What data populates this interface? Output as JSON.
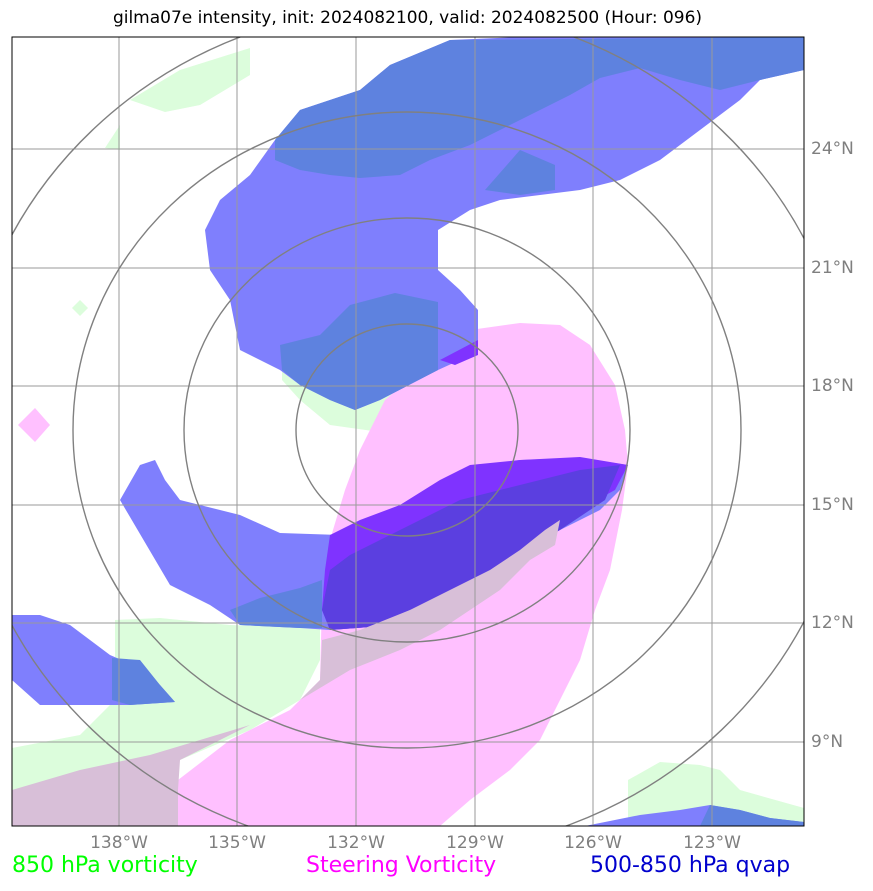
{
  "title": "gilma07e intensity, init: 2024082100, valid: 2024082500 (Hour: 096)",
  "lat_labels": [
    "24°N",
    "21°N",
    "18°N",
    "15°N",
    "12°N",
    "9°N"
  ],
  "lon_labels": [
    "138°W",
    "135°W",
    "132°W",
    "129°W",
    "126°W",
    "123°W"
  ],
  "legend": [
    {
      "label": "850 hPa vorticity",
      "color": "#00ff00"
    },
    {
      "label": "Steering Vorticity",
      "color": "#ff00ff"
    },
    {
      "label": "500-850 hPa qvap",
      "color": "#0000cd"
    }
  ],
  "colors": {
    "vorticity_850": "#dcfddc",
    "steering_vorticity": "#ffc0ff",
    "qvap": "#7f7ffd",
    "qvap_overlap": "#5e82df",
    "qvap_steering_overlap": "#7f33ff",
    "gridline": "#9a9a9a",
    "range_ring": "#808080"
  }
}
